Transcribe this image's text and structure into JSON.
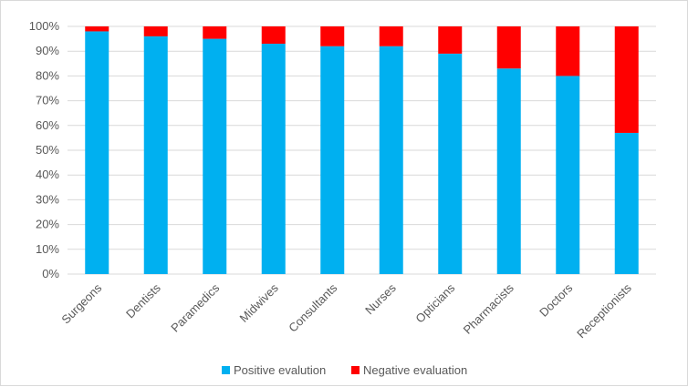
{
  "chart_data": {
    "type": "bar",
    "stacked": true,
    "categories": [
      "Surgeons",
      "Dentists",
      "Paramedics",
      "Midwives",
      "Consultants",
      "Nurses",
      "Opticians",
      "Pharmacists",
      "Doctors",
      "Receptionists"
    ],
    "series": [
      {
        "name": "Positive evalution",
        "color": "#00b0f0",
        "values": [
          98,
          96,
          95,
          93,
          92,
          92,
          89,
          83,
          80,
          57
        ]
      },
      {
        "name": "Negative evaluation",
        "color": "#ff0000",
        "values": [
          2,
          4,
          5,
          7,
          8,
          8,
          11,
          17,
          20,
          43
        ]
      }
    ],
    "title": "",
    "xlabel": "",
    "ylabel": "",
    "ylim": [
      0,
      100
    ],
    "y_ticks": [
      "0%",
      "10%",
      "20%",
      "30%",
      "40%",
      "50%",
      "60%",
      "70%",
      "80%",
      "90%",
      "100%"
    ],
    "grid": true,
    "legend_position": "bottom"
  }
}
